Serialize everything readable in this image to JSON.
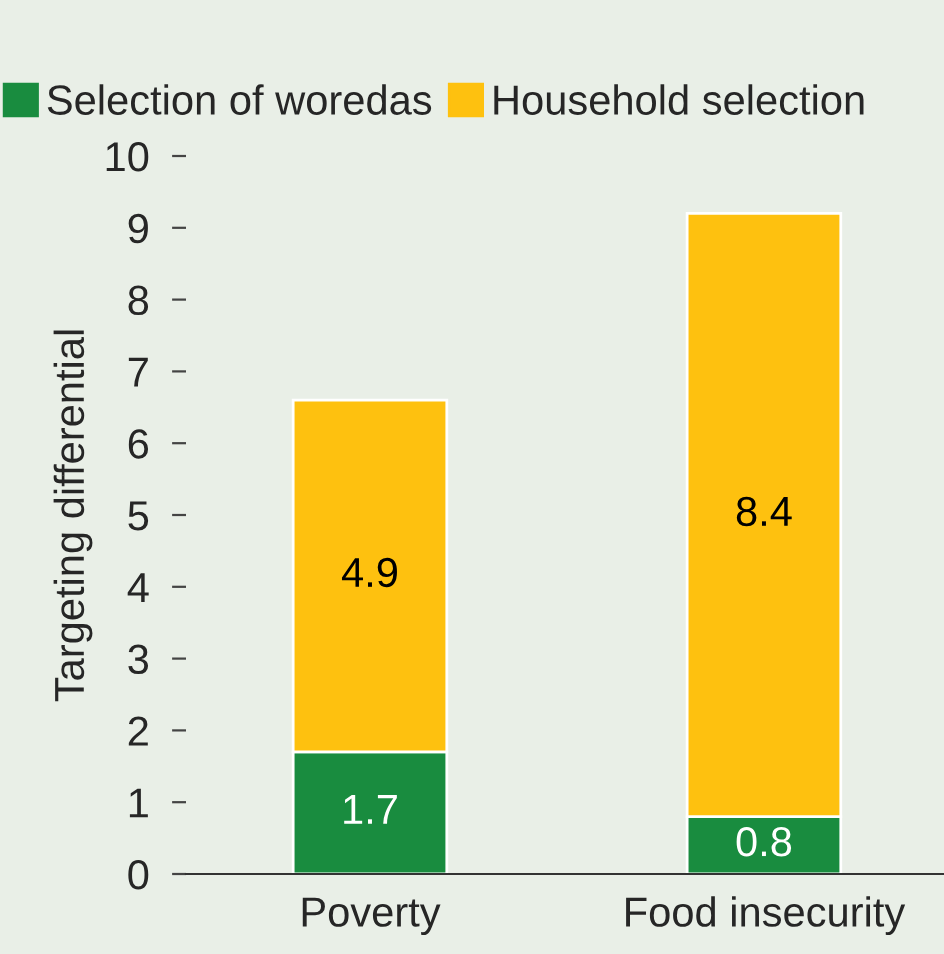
{
  "chart_data": {
    "type": "bar",
    "stacked": true,
    "categories": [
      "Poverty",
      "Food insecurity"
    ],
    "series": [
      {
        "name": "Selection of woredas",
        "color": "#198c3f",
        "values": [
          1.7,
          0.8
        ]
      },
      {
        "name": "Household selection",
        "color": "#fec10f",
        "values": [
          4.9,
          8.4
        ]
      }
    ],
    "ylabel": "Targeting differential",
    "ylim": [
      0,
      10
    ],
    "yticks": [
      0,
      1,
      2,
      3,
      4,
      5,
      6,
      7,
      8,
      9,
      10
    ],
    "data_labels": true,
    "legend": "top left",
    "grid": false
  }
}
